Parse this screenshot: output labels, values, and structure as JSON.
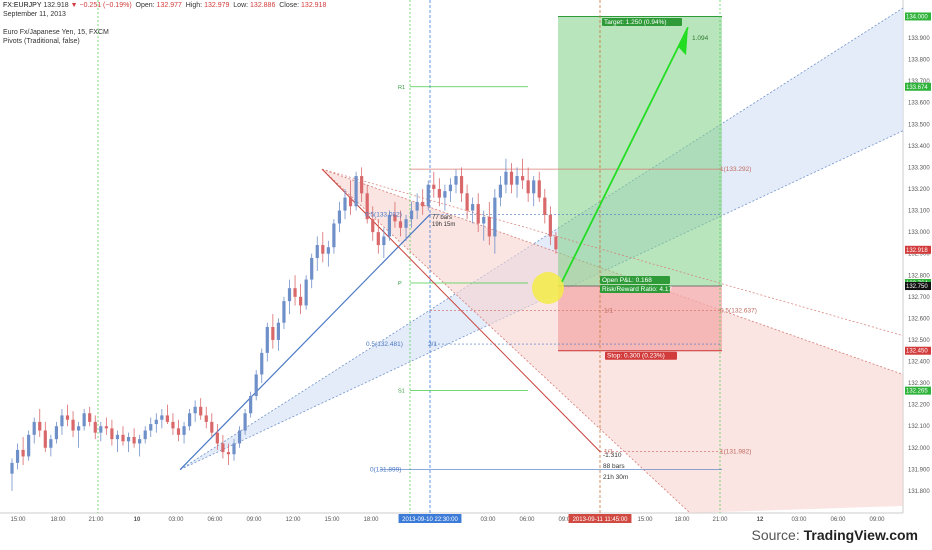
{
  "header": {
    "symbol": "FX:EURJPY",
    "last": "132.918",
    "arrow": "▼",
    "change": "−0.251 (−0.19%)",
    "open_label": "Open:",
    "open": "132.977",
    "high_label": "High:",
    "high": "132.979",
    "low_label": "Low:",
    "low": "132.886",
    "close_label": "Close:",
    "close": "132.918",
    "date": "September 11, 2013",
    "instrument": "Euro Fx/Japanese Yen, 15, FXCM",
    "indicator": "Pivots (Traditional, false)"
  },
  "source": {
    "prefix": "Source: ",
    "brand": "TradingView.com"
  },
  "colors": {
    "up": "#6f8fc9",
    "down": "#d9686a",
    "blue_line": "#4a78c4",
    "red_line": "#c9413b",
    "pivot": "#44cc44",
    "target_zone": "#3fb24a",
    "stop_zone": "#f3a8a8",
    "arrow": "#22dd22",
    "highlight": "#f3ec46"
  },
  "chart_data": {
    "type": "candlestick",
    "symbol": "EURJPY",
    "timeframe": "15",
    "ylim": [
      131.73,
      134.03
    ],
    "y_ticks": [
      "134.000",
      "133.900",
      "133.800",
      "133.700",
      "133.600",
      "133.500",
      "133.400",
      "133.300",
      "133.200",
      "133.100",
      "133.000",
      "132.900",
      "132.800",
      "132.700",
      "132.600",
      "132.500",
      "132.400",
      "132.300",
      "132.200",
      "132.100",
      "132.000",
      "131.900",
      "131.800"
    ],
    "y_tick_values": [
      134.0,
      133.9,
      133.8,
      133.7,
      133.6,
      133.5,
      133.4,
      133.3,
      133.2,
      133.1,
      133.0,
      132.9,
      132.8,
      132.7,
      132.6,
      132.5,
      132.4,
      132.3,
      132.2,
      132.1,
      132.0,
      131.9,
      131.8
    ],
    "x_ticks": [
      "15:00",
      "18:00",
      "21:00",
      "10",
      "03:00",
      "06:00",
      "09:00",
      "12:00",
      "15:00",
      "18:00",
      "2013-09-10 22:30:00",
      "03:00",
      "06:00",
      "09:00",
      "2013-09-11 11:45:00",
      "15:00",
      "18:00",
      "21:00",
      "12",
      "03:00",
      "06:00",
      "09:00"
    ],
    "x_tick_highlight": {
      "2013-09-10 22:30:00": "#3d7bd8",
      "2013-09-11 11:45:00": "#d14a42"
    },
    "price_badges": [
      {
        "value": 134.0,
        "label": "134.000",
        "color": "#2fb33a"
      },
      {
        "value": 133.674,
        "label": "133.674",
        "color": "#2fb33a"
      },
      {
        "value": 132.918,
        "label": "132.918",
        "color": "#d23b3b"
      },
      {
        "value": 132.764,
        "label": "132.764",
        "color": "#2fb33a"
      },
      {
        "value": 132.75,
        "label": "132.750",
        "color": "#111111"
      },
      {
        "value": 132.45,
        "label": "132.450",
        "color": "#d23b3b"
      },
      {
        "value": 132.265,
        "label": "132.265",
        "color": "#2fb33a"
      }
    ],
    "pivots": [
      {
        "label": "R1",
        "value": 133.674
      },
      {
        "label": "P",
        "value": 132.764
      },
      {
        "label": "S1",
        "value": 132.265
      }
    ],
    "fib_labels": [
      {
        "label": "0.5(133.082)",
        "value": 133.082
      },
      {
        "label": "0.5(132.481)",
        "value": 132.481
      },
      {
        "label": "0(131.899)",
        "value": 131.899
      },
      {
        "label": "1(133.292)",
        "value": 133.292
      },
      {
        "label": "0.5(132.637)",
        "value": 132.637
      },
      {
        "label": "1(131.982)",
        "value": 131.982
      },
      {
        "label": "1/1",
        "value": 132.637
      },
      {
        "label": "2/1",
        "value": 132.481
      },
      {
        "label": "1/1",
        "value": 131.982
      }
    ],
    "projection": {
      "line1": "-1.310",
      "line2": "88 bars",
      "line3": "21h 30m"
    },
    "measure_small": {
      "line1": "77 bars",
      "line2": "19h 15m"
    },
    "position": {
      "target_label": "Target: 1.250 (0.94%)",
      "open_pl": "Open P&L: 0.168",
      "risk_reward": "Risk/Reward Ratio: 4.17",
      "stop_label": "Stop: 0.300 (0.23%)",
      "entry": 132.75,
      "target": 134.0,
      "stop": 132.45
    },
    "arrow_label": "1.094",
    "candles": [
      [
        131.88,
        131.95,
        131.8,
        131.93
      ],
      [
        131.93,
        132.02,
        131.9,
        131.99
      ],
      [
        131.99,
        132.05,
        131.92,
        131.96
      ],
      [
        131.96,
        132.08,
        131.94,
        132.06
      ],
      [
        132.06,
        132.14,
        132.02,
        132.12
      ],
      [
        132.12,
        132.18,
        132.05,
        132.08
      ],
      [
        132.08,
        132.12,
        131.98,
        132.0
      ],
      [
        132.0,
        132.06,
        131.96,
        132.04
      ],
      [
        132.04,
        132.12,
        132.02,
        132.1
      ],
      [
        132.1,
        132.18,
        132.06,
        132.15
      ],
      [
        132.15,
        132.2,
        132.1,
        132.13
      ],
      [
        132.13,
        132.17,
        132.05,
        132.08
      ],
      [
        132.08,
        132.12,
        132.0,
        132.1
      ],
      [
        132.1,
        132.18,
        132.08,
        132.16
      ],
      [
        132.16,
        132.19,
        132.1,
        132.12
      ],
      [
        132.12,
        132.15,
        132.04,
        132.07
      ],
      [
        132.07,
        132.12,
        132.03,
        132.1
      ],
      [
        132.1,
        132.14,
        132.06,
        132.09
      ],
      [
        132.09,
        132.13,
        132.01,
        132.04
      ],
      [
        132.04,
        132.08,
        131.98,
        132.06
      ],
      [
        132.06,
        132.1,
        132.01,
        132.03
      ],
      [
        132.03,
        132.07,
        131.98,
        132.05
      ],
      [
        132.05,
        132.09,
        132.0,
        132.02
      ],
      [
        132.02,
        132.06,
        131.96,
        132.04
      ],
      [
        132.04,
        132.1,
        132.02,
        132.08
      ],
      [
        132.08,
        132.14,
        132.05,
        132.11
      ],
      [
        132.11,
        132.16,
        132.07,
        132.13
      ],
      [
        132.13,
        132.18,
        132.09,
        132.15
      ],
      [
        132.15,
        132.2,
        132.11,
        132.12
      ],
      [
        132.12,
        132.16,
        132.06,
        132.09
      ],
      [
        132.09,
        132.13,
        132.03,
        132.06
      ],
      [
        132.06,
        132.12,
        132.02,
        132.1
      ],
      [
        132.1,
        132.18,
        132.08,
        132.16
      ],
      [
        132.16,
        132.22,
        132.12,
        132.19
      ],
      [
        132.19,
        132.23,
        132.13,
        132.15
      ],
      [
        132.15,
        132.19,
        132.09,
        132.12
      ],
      [
        132.12,
        132.16,
        132.05,
        132.07
      ],
      [
        132.07,
        132.11,
        131.99,
        132.02
      ],
      [
        132.02,
        132.06,
        131.95,
        131.98
      ],
      [
        131.98,
        132.02,
        131.92,
        131.97
      ],
      [
        131.97,
        132.04,
        131.94,
        132.02
      ],
      [
        132.02,
        132.1,
        132.0,
        132.08
      ],
      [
        132.08,
        132.18,
        132.06,
        132.16
      ],
      [
        132.16,
        132.26,
        132.14,
        132.24
      ],
      [
        132.24,
        132.36,
        132.22,
        132.34
      ],
      [
        132.34,
        132.46,
        132.3,
        132.44
      ],
      [
        132.44,
        132.58,
        132.4,
        132.56
      ],
      [
        132.56,
        132.62,
        132.46,
        132.5
      ],
      [
        132.5,
        132.6,
        132.45,
        132.58
      ],
      [
        132.58,
        132.7,
        132.55,
        132.68
      ],
      [
        132.68,
        132.78,
        132.62,
        132.74
      ],
      [
        132.74,
        132.8,
        132.66,
        132.7
      ],
      [
        132.7,
        132.76,
        132.62,
        132.66
      ],
      [
        132.66,
        132.8,
        132.64,
        132.78
      ],
      [
        132.78,
        132.9,
        132.74,
        132.88
      ],
      [
        132.88,
        132.98,
        132.82,
        132.94
      ],
      [
        132.94,
        133.0,
        132.86,
        132.9
      ],
      [
        132.9,
        132.96,
        132.84,
        132.93
      ],
      [
        132.93,
        133.06,
        132.9,
        133.04
      ],
      [
        133.04,
        133.14,
        133.0,
        133.1
      ],
      [
        133.1,
        133.2,
        133.06,
        133.16
      ],
      [
        133.16,
        133.24,
        133.08,
        133.12
      ],
      [
        133.12,
        133.28,
        133.1,
        133.26
      ],
      [
        133.26,
        133.3,
        133.14,
        133.18
      ],
      [
        133.18,
        133.22,
        133.04,
        133.06
      ],
      [
        133.06,
        133.12,
        132.96,
        133.0
      ],
      [
        133.0,
        133.06,
        132.9,
        132.94
      ],
      [
        132.94,
        133.02,
        132.88,
        132.98
      ],
      [
        132.98,
        133.1,
        132.96,
        133.08
      ],
      [
        133.08,
        133.14,
        133.02,
        133.05
      ],
      [
        133.05,
        133.1,
        132.98,
        133.02
      ],
      [
        133.02,
        133.08,
        132.96,
        133.06
      ],
      [
        133.06,
        133.14,
        133.02,
        133.1
      ],
      [
        133.1,
        133.18,
        133.06,
        133.14
      ],
      [
        133.14,
        133.2,
        133.08,
        133.12
      ],
      [
        133.12,
        133.24,
        133.1,
        133.22
      ],
      [
        133.22,
        133.28,
        133.16,
        133.2
      ],
      [
        133.2,
        133.25,
        133.12,
        133.16
      ],
      [
        133.16,
        133.22,
        133.1,
        133.19
      ],
      [
        133.19,
        133.25,
        133.14,
        133.22
      ],
      [
        133.22,
        133.29,
        133.18,
        133.26
      ],
      [
        133.26,
        133.3,
        133.14,
        133.18
      ],
      [
        133.18,
        133.22,
        133.06,
        133.1
      ],
      [
        133.1,
        133.16,
        133.04,
        133.13
      ],
      [
        133.13,
        133.18,
        133.0,
        133.04
      ],
      [
        133.04,
        133.1,
        132.96,
        133.07
      ],
      [
        133.07,
        133.14,
        132.94,
        132.98
      ],
      [
        132.98,
        133.2,
        132.9,
        133.16
      ],
      [
        133.16,
        133.26,
        133.12,
        133.22
      ],
      [
        133.22,
        133.34,
        133.18,
        133.28
      ],
      [
        133.28,
        133.32,
        133.18,
        133.22
      ],
      [
        133.22,
        133.3,
        133.16,
        133.26
      ],
      [
        133.26,
        133.34,
        133.2,
        133.24
      ],
      [
        133.24,
        133.3,
        133.14,
        133.18
      ],
      [
        133.18,
        133.26,
        133.12,
        133.24
      ],
      [
        133.24,
        133.28,
        133.14,
        133.16
      ],
      [
        133.16,
        133.2,
        133.04,
        133.08
      ],
      [
        133.08,
        133.12,
        132.94,
        132.98
      ],
      [
        132.98,
        133.0,
        132.9,
        132.92
      ]
    ]
  }
}
